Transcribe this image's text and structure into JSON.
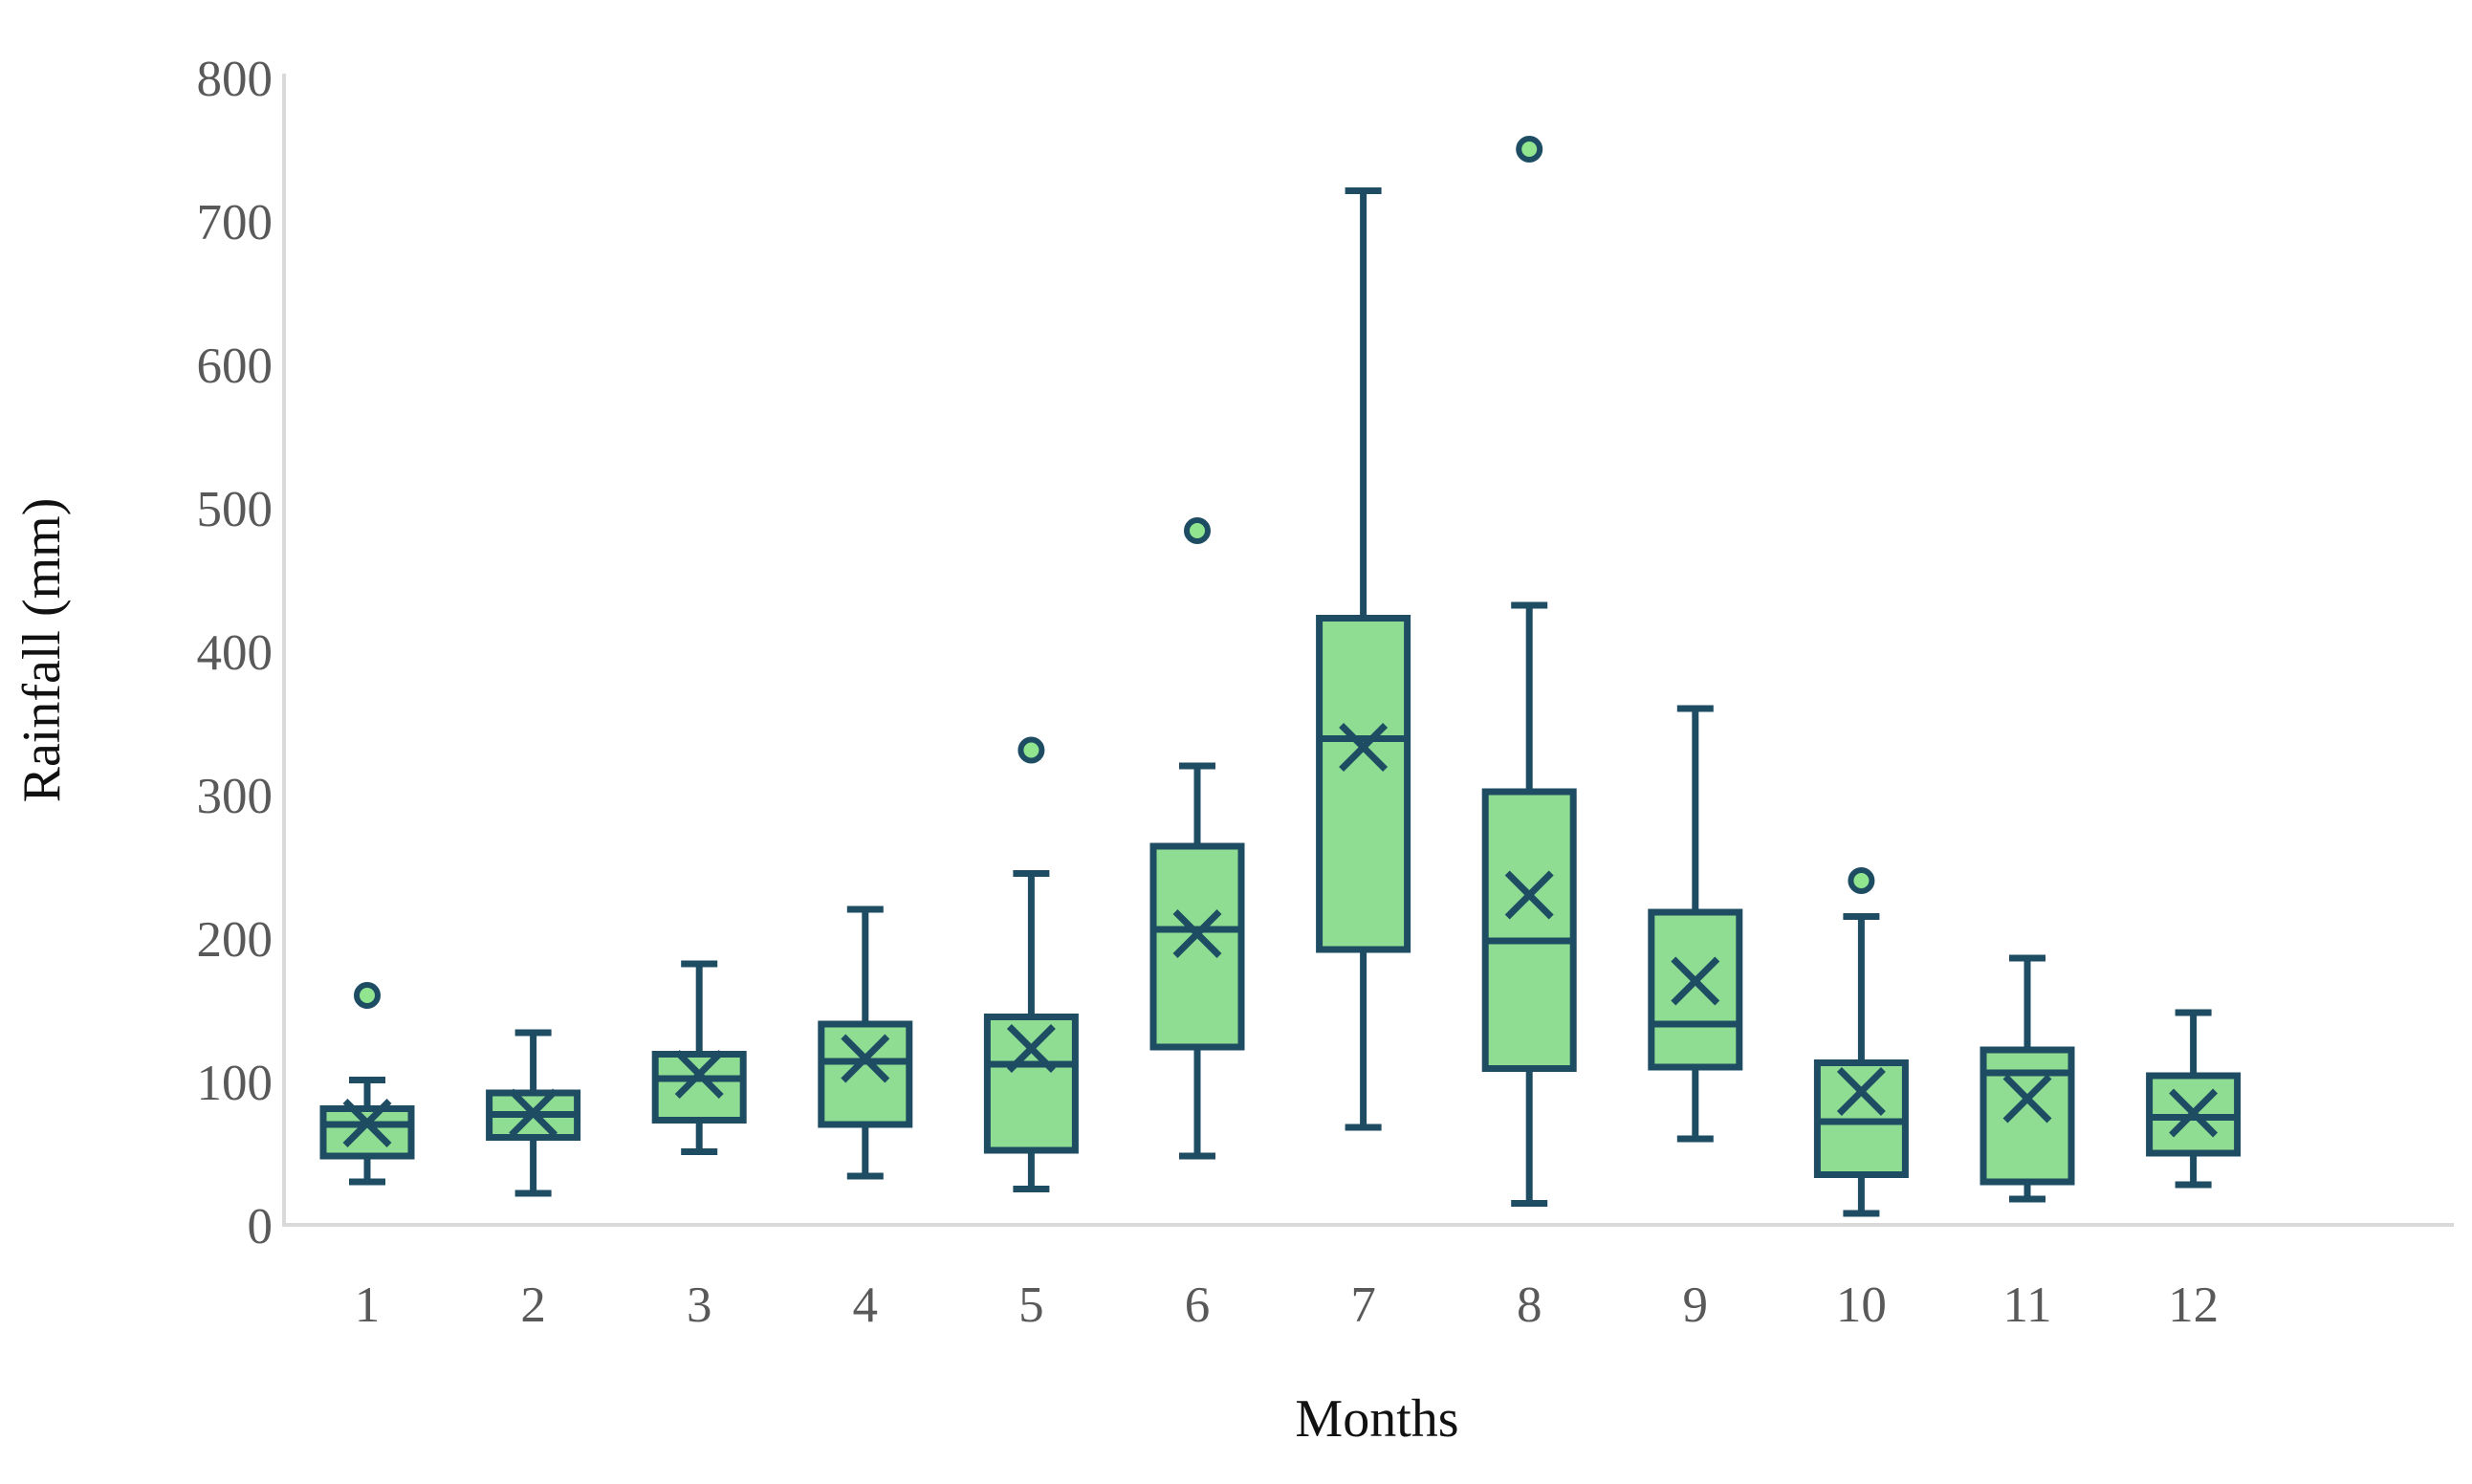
{
  "figure": {
    "kind": "boxplot-figure",
    "background": "#ffffff"
  },
  "chart_data": {
    "type": "boxplot",
    "title": "",
    "xlabel": "Months",
    "ylabel": "Rainfall (mm)",
    "categories": [
      "1",
      "2",
      "3",
      "4",
      "5",
      "6",
      "7",
      "8",
      "9",
      "10",
      "11",
      "12"
    ],
    "ylim": [
      0,
      800
    ],
    "yticks": [
      0,
      100,
      200,
      300,
      400,
      500,
      600,
      700,
      800
    ],
    "grid": false,
    "legend": "none",
    "series": [
      {
        "month": "1",
        "min": 30,
        "q1": 48,
        "median": 70,
        "mean": 71,
        "q3": 81,
        "max": 101,
        "outliers": [
          160
        ]
      },
      {
        "month": "2",
        "min": 22,
        "q1": 61,
        "median": 77,
        "mean": 78,
        "q3": 92,
        "max": 134,
        "outliers": []
      },
      {
        "month": "3",
        "min": 51,
        "q1": 73,
        "median": 102,
        "mean": 105,
        "q3": 119,
        "max": 182,
        "outliers": []
      },
      {
        "month": "4",
        "min": 34,
        "q1": 70,
        "median": 114,
        "mean": 116,
        "q3": 140,
        "max": 220,
        "outliers": []
      },
      {
        "month": "5",
        "min": 25,
        "q1": 52,
        "median": 112,
        "mean": 123,
        "q3": 145,
        "max": 245,
        "outliers": [
          331
        ]
      },
      {
        "month": "6",
        "min": 48,
        "q1": 124,
        "median": 206,
        "mean": 203,
        "q3": 264,
        "max": 320,
        "outliers": [
          484
        ]
      },
      {
        "month": "7",
        "min": 68,
        "q1": 192,
        "median": 339,
        "mean": 333,
        "q3": 423,
        "max": 721,
        "outliers": []
      },
      {
        "month": "8",
        "min": 15,
        "q1": 109,
        "median": 198,
        "mean": 230,
        "q3": 302,
        "max": 432,
        "outliers": [
          750
        ]
      },
      {
        "month": "9",
        "min": 60,
        "q1": 110,
        "median": 140,
        "mean": 170,
        "q3": 218,
        "max": 360,
        "outliers": []
      },
      {
        "month": "10",
        "min": 8,
        "q1": 35,
        "median": 72,
        "mean": 93,
        "q3": 113,
        "max": 215,
        "outliers": [
          240
        ]
      },
      {
        "month": "11",
        "min": 18,
        "q1": 30,
        "median": 106,
        "mean": 88,
        "q3": 122,
        "max": 186,
        "outliers": []
      },
      {
        "month": "12",
        "min": 28,
        "q1": 50,
        "median": 75,
        "mean": 78,
        "q3": 104,
        "max": 148,
        "outliers": []
      }
    ]
  },
  "style": {
    "box_fill": "#8EDD92",
    "box_stroke": "#1E4D63",
    "outlier_fill": "#90E58E",
    "axis_line_color": "#D9D9D9",
    "tick_label_color": "#595959",
    "axis_title_color": "#111111"
  }
}
